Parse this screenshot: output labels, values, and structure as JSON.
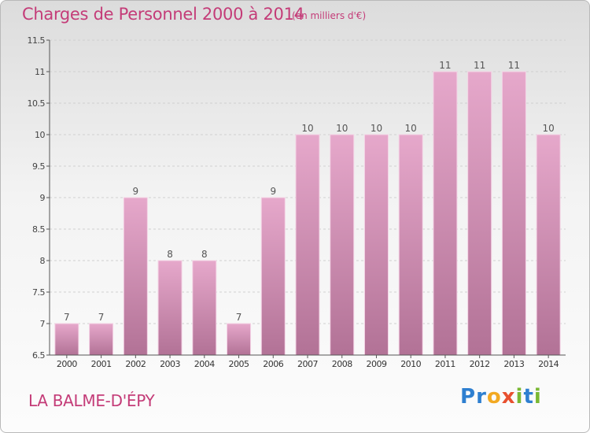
{
  "header": {
    "title": "Charges de Personnel 2000 à 2014",
    "subtitle": "(en milliers d'€)"
  },
  "footer": {
    "place": "LA BALME-D'ÉPY",
    "logo_letters": [
      {
        "ch": "P",
        "color": "#2e7fd0"
      },
      {
        "ch": "r",
        "color": "#2e7fd0"
      },
      {
        "ch": "o",
        "color": "#f2a922"
      },
      {
        "ch": "x",
        "color": "#e8502f"
      },
      {
        "ch": "i",
        "color": "#7ab833"
      },
      {
        "ch": "t",
        "color": "#2e7fd0"
      },
      {
        "ch": "i",
        "color": "#7ab833"
      }
    ]
  },
  "chart_data": {
    "type": "bar",
    "title": "Charges de Personnel 2000 à 2014",
    "subtitle": "(en milliers d'€)",
    "categories": [
      "2000",
      "2001",
      "2002",
      "2003",
      "2004",
      "2005",
      "2006",
      "2007",
      "2008",
      "2009",
      "2010",
      "2011",
      "2012",
      "2013",
      "2014"
    ],
    "values": [
      7,
      7,
      9,
      8,
      8,
      7,
      9,
      10,
      10,
      10,
      10,
      11,
      11,
      11,
      10
    ],
    "ylim": [
      6.5,
      11.5
    ],
    "yticks": [
      6.5,
      7,
      7.5,
      8,
      8.5,
      9,
      9.5,
      10,
      10.5,
      11,
      11.5
    ],
    "ytick_labels": [
      "6.5",
      "7",
      "7.5",
      "8",
      "8.5",
      "9",
      "9.5",
      "10",
      "10.5",
      "11",
      "11.5"
    ],
    "grid": "horizontal dashed",
    "bar_color_top": "#e6a8cb",
    "bar_color_bottom": "#b27296",
    "axis_color": "#555555"
  }
}
